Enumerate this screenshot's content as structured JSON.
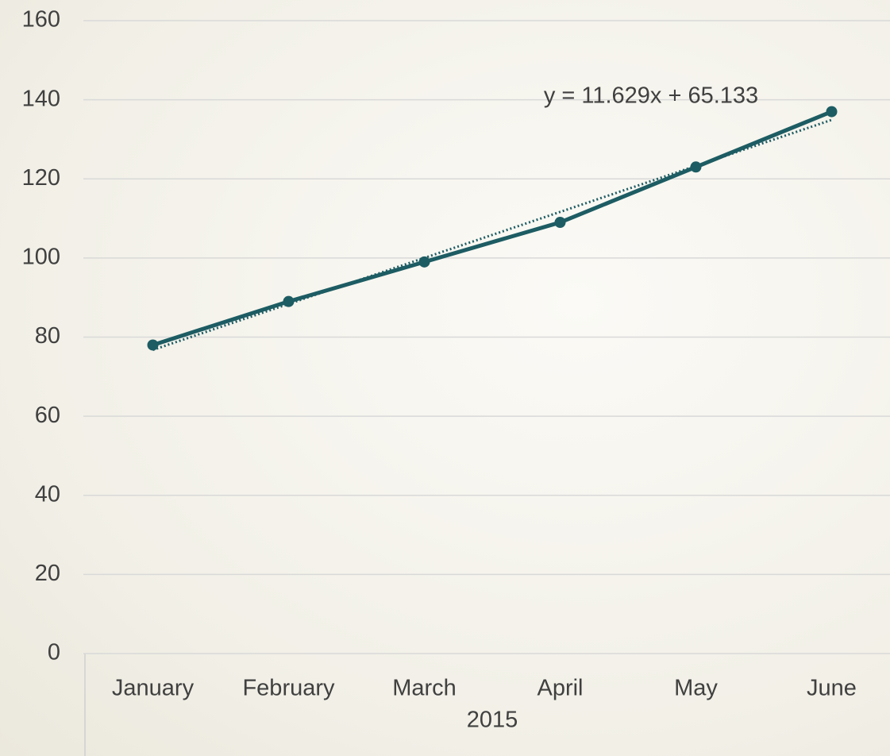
{
  "chart_data": {
    "type": "line",
    "group_label": "2015",
    "categories": [
      "January",
      "February",
      "March",
      "April",
      "May",
      "June"
    ],
    "series": [
      {
        "color": "#1d5c63",
        "values": [
          78,
          89,
          99,
          109,
          123,
          137
        ]
      }
    ],
    "trendline": {
      "slope": 11.629,
      "intercept": 65.133,
      "label": "y = 11.629x + 65.133"
    },
    "ylim": [
      0,
      160
    ],
    "yticks": [
      0,
      20,
      40,
      60,
      80,
      100,
      120,
      140,
      160
    ],
    "grid": true
  }
}
